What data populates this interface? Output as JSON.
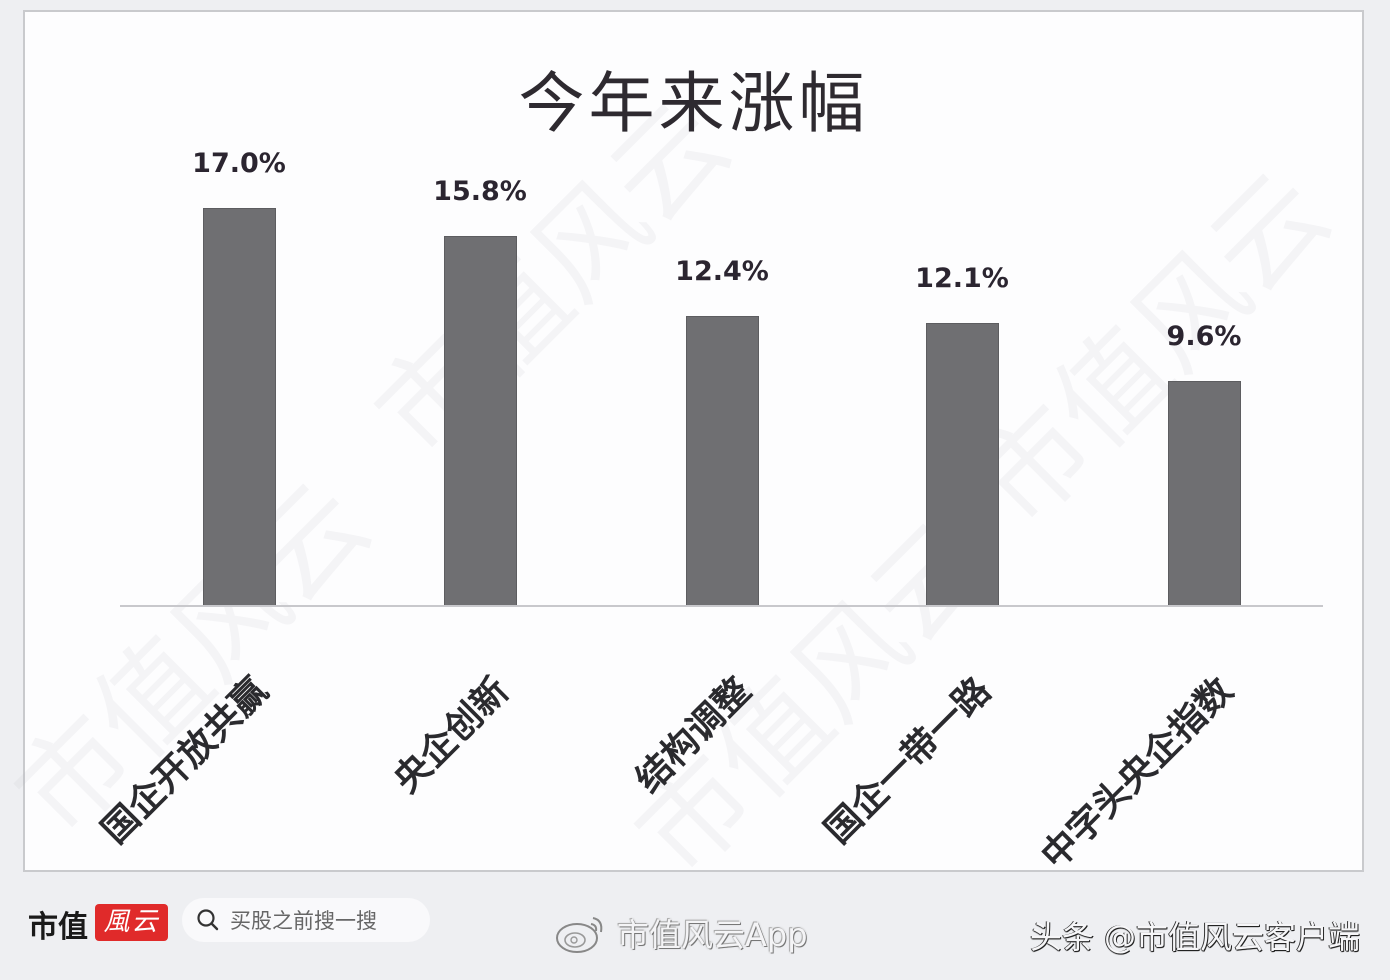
{
  "chart_data": {
    "type": "bar",
    "title": "今年来涨幅",
    "categories": [
      "国企开放共赢",
      "央企创新",
      "结构调整",
      "国企一带一路",
      "中字头央企指数"
    ],
    "values": [
      17.0,
      15.8,
      12.4,
      12.1,
      9.6
    ],
    "value_labels": [
      "17.0%",
      "15.8%",
      "12.4%",
      "12.1%",
      "9.6%"
    ],
    "unit": "%",
    "xlabel": "",
    "ylabel": "",
    "ylim": [
      0,
      17.0
    ],
    "grid": false,
    "legend": null,
    "bar_color": "#6f6f72"
  },
  "footer": {
    "brand_text": "市值",
    "brand_badge": "風云",
    "search_placeholder": "买股之前搜一搜",
    "weibo_text": "市值风云App",
    "toutiao_text": "头条 @市值风云客户端"
  },
  "watermark_text": "市值风云"
}
